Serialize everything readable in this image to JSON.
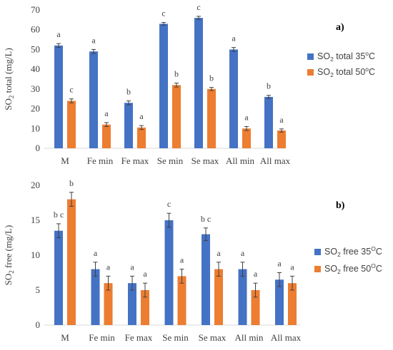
{
  "colors": {
    "series_a": "#4472C4",
    "series_b": "#ED7D31",
    "text": "#404040",
    "errorbar": "#404040"
  },
  "chart_data": [
    {
      "type": "bar",
      "panel_label": "a)",
      "ylabel": "SO2 total (mg/L)",
      "ylabel_parts": {
        "main": "SO",
        "sub": "2",
        "rest": " total (mg/L)"
      },
      "ylim": [
        0,
        70
      ],
      "yticks": [
        0,
        10,
        20,
        30,
        40,
        50,
        60,
        70
      ],
      "grid": false,
      "legend_position": "top-right",
      "categories": [
        "M",
        "Fe min",
        "Fe max",
        "Se min",
        "Se max",
        "All min",
        "All max"
      ],
      "series": [
        {
          "name": "SO2 total 35°C",
          "name_parts": {
            "main": "SO",
            "sub": "2",
            "rest": " total 35",
            "sup": "o",
            "end": "C"
          },
          "values": [
            52,
            49,
            23,
            63,
            66,
            50,
            26
          ],
          "errors": [
            1,
            1,
            1,
            0.7,
            0.8,
            1,
            0.8
          ],
          "letters": [
            "a",
            "a",
            "b",
            "c",
            "c",
            "a",
            "b"
          ]
        },
        {
          "name": "SO2 total 50°C",
          "name_parts": {
            "main": "SO",
            "sub": "2",
            "rest": " total 50",
            "sup": "o",
            "end": "C"
          },
          "values": [
            24,
            12,
            10.5,
            32,
            30,
            10,
            9
          ],
          "errors": [
            1,
            1,
            1,
            1,
            0.8,
            1,
            0.8
          ],
          "letters": [
            "c",
            "a",
            "a",
            "b",
            "b",
            "a",
            "a"
          ]
        }
      ]
    },
    {
      "type": "bar",
      "panel_label": "b)",
      "ylabel": "SO2 free (mg/L)",
      "ylabel_parts": {
        "main": "SO",
        "sub": "2",
        "rest": " free (mg/L)"
      },
      "ylim": [
        0,
        20
      ],
      "yticks": [
        0,
        5,
        10,
        15,
        20
      ],
      "grid": false,
      "legend_position": "right",
      "categories": [
        "M",
        "Fe min",
        "Fe max",
        "Se min",
        "Se max",
        "All min",
        "All max"
      ],
      "series": [
        {
          "name": "SO2 free 35°C",
          "name_parts": {
            "main": "SO",
            "sub": "2",
            "rest": " free 35",
            "sup": "O",
            "end": "C"
          },
          "values": [
            13.5,
            8,
            6,
            15,
            13,
            8,
            6.5
          ],
          "errors": [
            1,
            1,
            1,
            1,
            0.9,
            1,
            1
          ],
          "letters": [
            "b c",
            "a",
            "a",
            "c",
            "b c",
            "a",
            "a"
          ]
        },
        {
          "name": "SO2 free 50°C",
          "name_parts": {
            "main": "SO",
            "sub": "2",
            "rest": " free 50",
            "sup": "O",
            "end": "C"
          },
          "values": [
            18,
            6,
            5,
            7,
            8,
            5,
            6
          ],
          "errors": [
            1,
            1,
            1,
            1,
            1,
            1,
            1
          ],
          "letters": [
            "b",
            "a",
            "a",
            "a",
            "a",
            "a",
            "a"
          ]
        }
      ]
    }
  ]
}
